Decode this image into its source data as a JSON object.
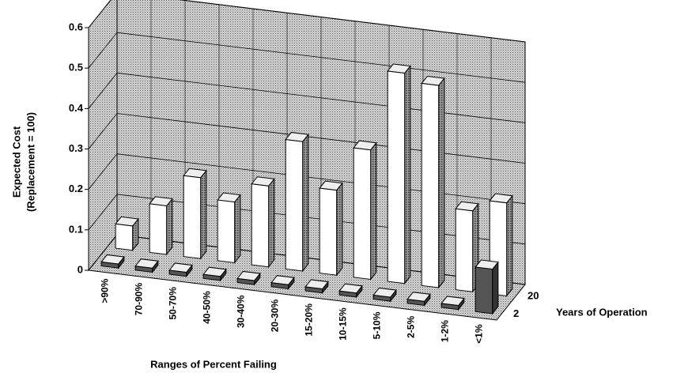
{
  "chart_data": {
    "type": "bar3d",
    "y_label": [
      "Expected Cost",
      "(Replacement = 100)"
    ],
    "x_label": "Ranges of Percent Failing",
    "z_label": "Years of Operation",
    "categories": [
      ">90%",
      "70-90%",
      "50-70%",
      "40-50%",
      "30-40%",
      "20-30%",
      "15-20%",
      "10-15%",
      "5-10%",
      "2-5%",
      "1-2%",
      "<1%"
    ],
    "series": [
      {
        "name": "2",
        "color": "#555555",
        "values": [
          0.01,
          0.01,
          0.01,
          0.01,
          0.01,
          0.01,
          0.01,
          0.01,
          0.01,
          0.01,
          0.01,
          0.11
        ]
      },
      {
        "name": "20",
        "color": "#ffffff",
        "values": [
          0.06,
          0.12,
          0.2,
          0.15,
          0.2,
          0.32,
          0.21,
          0.32,
          0.52,
          0.5,
          0.2,
          0.23
        ]
      }
    ],
    "ylim": [
      0,
      0.6
    ],
    "yticks": [
      0,
      0.1,
      0.2,
      0.3,
      0.4,
      0.5,
      0.6
    ],
    "grid": true
  }
}
